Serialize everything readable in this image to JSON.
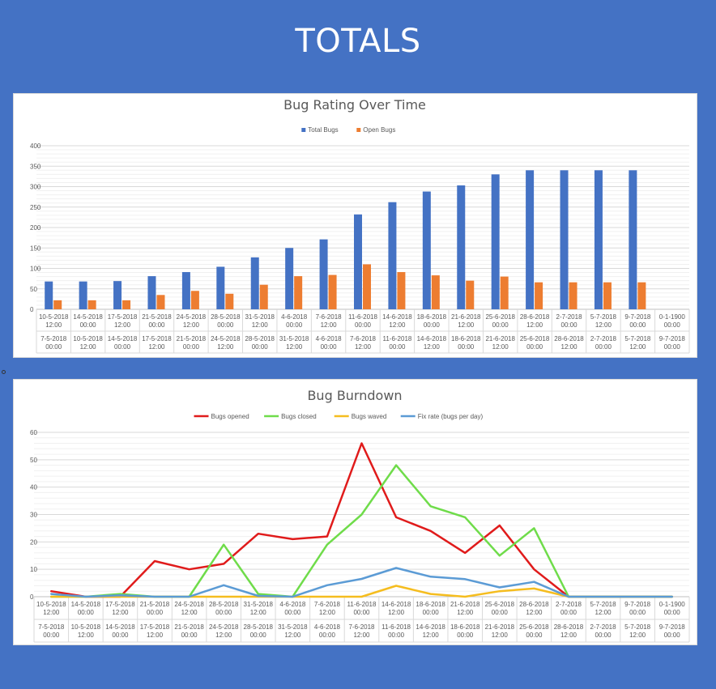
{
  "page": {
    "title": "TOTALS"
  },
  "chart_data": [
    {
      "type": "bar",
      "title": "Bug Rating Over Time",
      "ylim": [
        0,
        400
      ],
      "yticks": [
        0,
        50,
        100,
        150,
        200,
        250,
        300,
        350,
        400
      ],
      "categories_top": [
        "10-5-2018 12:00",
        "14-5-2018 00:00",
        "17-5-2018 12:00",
        "21-5-2018 00:00",
        "24-5-2018 12:00",
        "28-5-2018 00:00",
        "31-5-2018 12:00",
        "4-6-2018 00:00",
        "7-6-2018 12:00",
        "11-6-2018 00:00",
        "14-6-2018 12:00",
        "18-6-2018 00:00",
        "21-6-2018 12:00",
        "25-6-2018 00:00",
        "28-6-2018 12:00",
        "2-7-2018 00:00",
        "5-7-2018 12:00",
        "9-7-2018 00:00",
        "0-1-1900 00:00"
      ],
      "categories_bottom": [
        "7-5-2018 00:00",
        "10-5-2018 12:00",
        "14-5-2018 00:00",
        "17-5-2018 12:00",
        "21-5-2018 00:00",
        "24-5-2018 12:00",
        "28-5-2018 00:00",
        "31-5-2018 12:00",
        "4-6-2018 00:00",
        "7-6-2018 12:00",
        "11-6-2018 00:00",
        "14-6-2018 12:00",
        "18-6-2018 00:00",
        "21-6-2018 12:00",
        "25-6-2018 00:00",
        "28-6-2018 12:00",
        "2-7-2018 00:00",
        "5-7-2018 12:00",
        "9-7-2018 00:00"
      ],
      "series": [
        {
          "name": "Total Bugs",
          "color": "#4472c4",
          "values": [
            68,
            68,
            69,
            81,
            91,
            104,
            127,
            150,
            171,
            232,
            262,
            288,
            303,
            330,
            340,
            340,
            340,
            340,
            0
          ]
        },
        {
          "name": "Open Bugs",
          "color": "#ed7d31",
          "values": [
            22,
            22,
            22,
            35,
            45,
            38,
            60,
            81,
            84,
            110,
            91,
            83,
            70,
            80,
            66,
            66,
            66,
            66,
            0
          ]
        }
      ]
    },
    {
      "type": "line",
      "title": "Bug Burndown",
      "ylim": [
        0,
        60
      ],
      "yticks": [
        0,
        10,
        20,
        30,
        40,
        50,
        60
      ],
      "categories_top": [
        "10-5-2018 12:00",
        "14-5-2018 00:00",
        "17-5-2018 12:00",
        "21-5-2018 00:00",
        "24-5-2018 12:00",
        "28-5-2018 00:00",
        "31-5-2018 12:00",
        "4-6-2018 00:00",
        "7-6-2018 12:00",
        "11-6-2018 00:00",
        "14-6-2018 12:00",
        "18-6-2018 00:00",
        "21-6-2018 12:00",
        "25-6-2018 00:00",
        "28-6-2018 12:00",
        "2-7-2018 00:00",
        "5-7-2018 12:00",
        "9-7-2018 00:00",
        "0-1-1900 00:00"
      ],
      "categories_bottom": [
        "7-5-2018 00:00",
        "10-5-2018 12:00",
        "14-5-2018 00:00",
        "17-5-2018 12:00",
        "21-5-2018 00:00",
        "24-5-2018 12:00",
        "28-5-2018 00:00",
        "31-5-2018 12:00",
        "4-6-2018 00:00",
        "7-6-2018 12:00",
        "11-6-2018 00:00",
        "14-6-2018 12:00",
        "18-6-2018 00:00",
        "21-6-2018 12:00",
        "25-6-2018 00:00",
        "28-6-2018 12:00",
        "2-7-2018 00:00",
        "5-7-2018 12:00",
        "9-7-2018 00:00"
      ],
      "series": [
        {
          "name": "Bugs opened",
          "color": "#e01b1b",
          "values": [
            2,
            0,
            0,
            13,
            10,
            12,
            23,
            21,
            22,
            56,
            29,
            24,
            16,
            26,
            10,
            0,
            0,
            0,
            0
          ]
        },
        {
          "name": "Bugs closed",
          "color": "#6fdc4a",
          "values": [
            0,
            0,
            1,
            0,
            0,
            19,
            1,
            0,
            19,
            30,
            48,
            33,
            29,
            15,
            25,
            0,
            0,
            0,
            0
          ]
        },
        {
          "name": "Bugs waved",
          "color": "#f5bd1f",
          "values": [
            0,
            0,
            0,
            0,
            0,
            0,
            0,
            0,
            0,
            0,
            4,
            1,
            0,
            2,
            3,
            0,
            0,
            0,
            0
          ]
        },
        {
          "name": "Fix rate (bugs per day)",
          "color": "#5b9bd5",
          "values": [
            1,
            0,
            0.5,
            0,
            0,
            4.2,
            0.3,
            0,
            4.2,
            6.5,
            10.5,
            7.3,
            6.4,
            3.4,
            5.4,
            0,
            0,
            0,
            0
          ]
        }
      ]
    }
  ]
}
